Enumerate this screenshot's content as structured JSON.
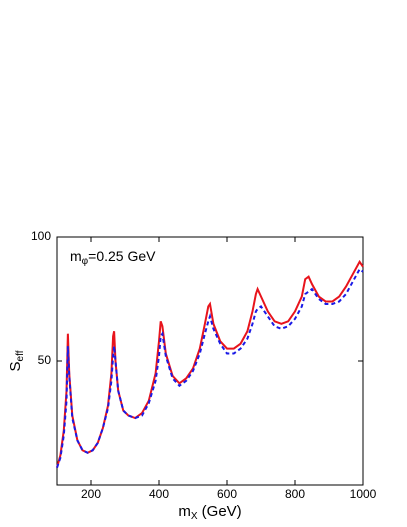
{
  "chart_data": {
    "type": "line",
    "annotation": {
      "text": "m",
      "sub": "φ",
      "rest": "=0.25 GeV"
    },
    "x_label": {
      "text": "m",
      "sub": "X",
      "rest": " (GeV)"
    },
    "y_label": {
      "text": "S",
      "sub": "eff"
    },
    "x": [
      100,
      110,
      120,
      128,
      132,
      136,
      145,
      160,
      175,
      190,
      205,
      220,
      235,
      250,
      260,
      265,
      268,
      272,
      280,
      295,
      310,
      330,
      350,
      370,
      390,
      400,
      405,
      410,
      420,
      440,
      460,
      480,
      500,
      520,
      535,
      545,
      550,
      560,
      580,
      600,
      620,
      640,
      660,
      675,
      685,
      690,
      700,
      720,
      740,
      760,
      780,
      800,
      820,
      830,
      840,
      850,
      870,
      890,
      910,
      930,
      950,
      970,
      990,
      1000
    ],
    "series": [
      {
        "name": "solid",
        "color": "#e8141c",
        "dash": false,
        "values": [
          7,
          12,
          22,
          38,
          61,
          45,
          28,
          18,
          14,
          13,
          14,
          17,
          23,
          32,
          45,
          60,
          62,
          50,
          38,
          30,
          28,
          27,
          29,
          34,
          45,
          58,
          66,
          64,
          53,
          44,
          41,
          43,
          47,
          55,
          65,
          72,
          73,
          65,
          58,
          55,
          55,
          57,
          62,
          70,
          77,
          79,
          76,
          70,
          66,
          65,
          66,
          70,
          76,
          83,
          84,
          81,
          76,
          74,
          74,
          76,
          80,
          85,
          90,
          88
        ]
      },
      {
        "name": "dashed",
        "color": "#1a1ae6",
        "dash": true,
        "values": [
          7,
          11,
          20,
          34,
          56,
          44,
          27,
          18,
          14,
          13,
          14,
          17,
          23,
          31,
          42,
          52,
          56,
          50,
          38,
          30,
          28,
          27,
          28,
          33,
          42,
          52,
          60,
          61,
          52,
          43,
          40,
          42,
          46,
          53,
          61,
          66,
          68,
          63,
          57,
          53,
          53,
          55,
          59,
          65,
          70,
          71,
          72,
          68,
          64,
          63,
          64,
          67,
          72,
          77,
          78,
          79,
          75,
          73,
          73,
          74,
          77,
          82,
          87,
          86
        ]
      }
    ],
    "xlim": [
      100,
      1000
    ],
    "xticks": [
      200,
      400,
      600,
      800,
      1000
    ],
    "ylim": [
      0,
      100
    ],
    "yticks": [
      50,
      100
    ]
  }
}
